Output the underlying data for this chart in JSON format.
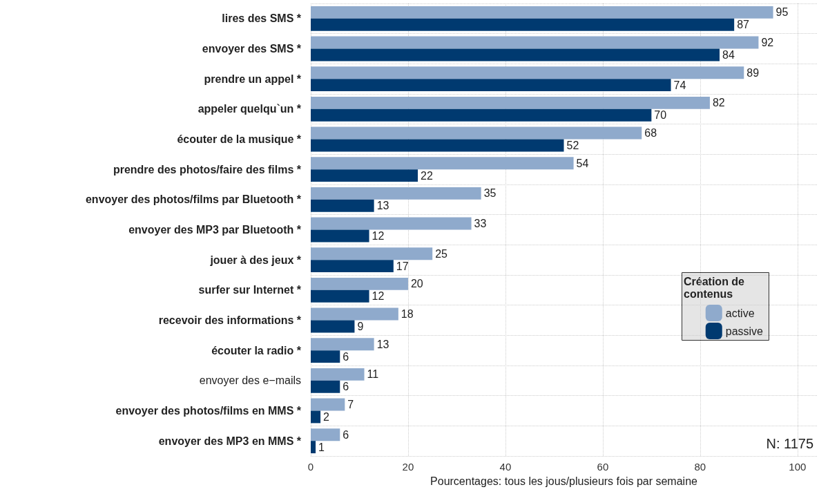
{
  "chart_data": {
    "type": "bar",
    "orientation": "horizontal",
    "categories": [
      "lires des SMS *",
      "envoyer des SMS *",
      "prendre un appel *",
      "appeler quelqu`un *",
      "écouter de la musique *",
      "prendre des photos/faire des films *",
      "envoyer des photos/films par Bluetooth *",
      "envoyer des MP3 par Bluetooth *",
      "jouer à des jeux *",
      "surfer sur Internet *",
      "recevoir des informations *",
      "écouter la radio *",
      "envoyer des e−mails",
      "envoyer des photos/films en MMS *",
      "envoyer des MP3 en MMS *"
    ],
    "series": [
      {
        "name": "active",
        "color": "#8faacc",
        "values": [
          95,
          92,
          89,
          82,
          68,
          54,
          35,
          33,
          25,
          20,
          18,
          13,
          11,
          7,
          6
        ]
      },
      {
        "name": "passive",
        "color": "#003a70",
        "values": [
          87,
          84,
          74,
          70,
          52,
          22,
          13,
          12,
          17,
          12,
          9,
          6,
          6,
          2,
          1
        ]
      }
    ],
    "xlabel": "Pourcentages: tous les jous/plusieurs fois par semaine",
    "legend_title": "Création de contenus",
    "legend": "right",
    "annotations": [
      "N: 1175"
    ],
    "xlim": [
      0,
      104
    ],
    "xticks": [
      0,
      20,
      40,
      60,
      80,
      100
    ],
    "grid": true,
    "data_labels": true
  }
}
